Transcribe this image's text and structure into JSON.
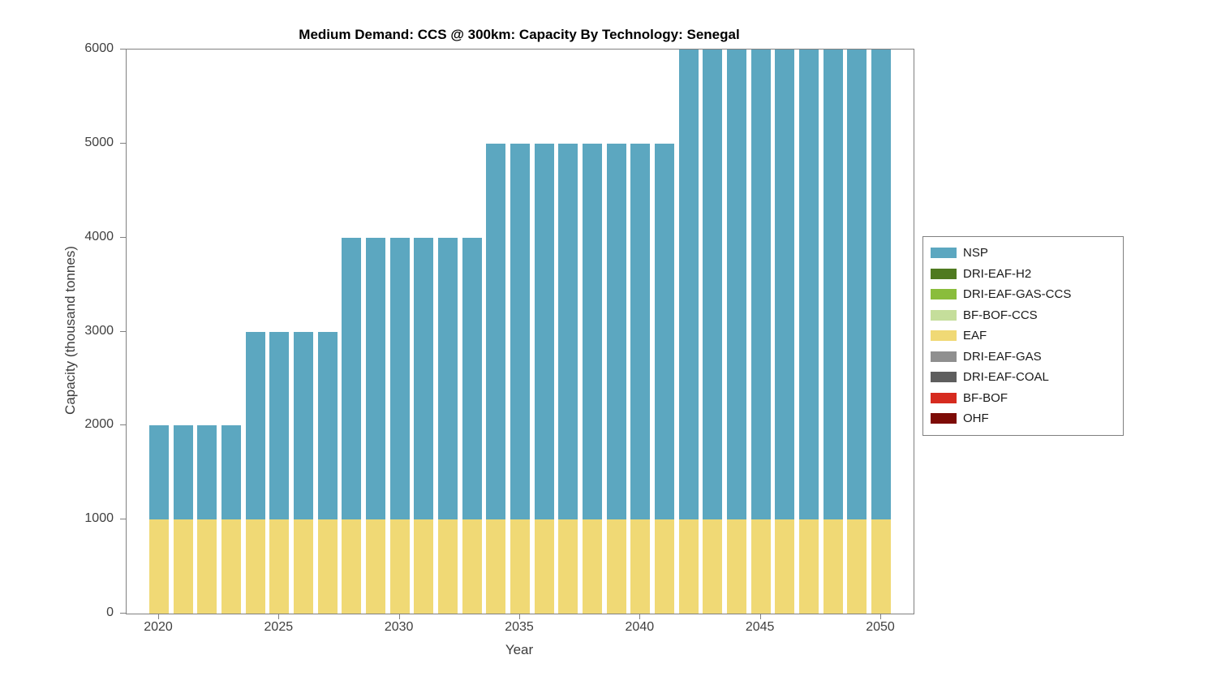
{
  "figure": {
    "title": "Medium Demand: CCS @ 300km: Capacity By Technology: Senegal",
    "xlabel": "Year",
    "ylabel": "Capacity (thousand tonnes)"
  },
  "chart_data": {
    "type": "bar",
    "stacked": true,
    "title": "Medium Demand: CCS @ 300km: Capacity By Technology: Senegal",
    "xlabel": "Year",
    "ylabel": "Capacity (thousand tonnes)",
    "grid": false,
    "ylim": [
      0,
      6000
    ],
    "yticks": [
      0,
      1000,
      2000,
      3000,
      4000,
      5000,
      6000
    ],
    "xticks": [
      2020,
      2025,
      2030,
      2035,
      2040,
      2045,
      2050
    ],
    "x": [
      2020,
      2021,
      2022,
      2023,
      2024,
      2025,
      2026,
      2027,
      2028,
      2029,
      2030,
      2031,
      2032,
      2033,
      2034,
      2035,
      2036,
      2037,
      2038,
      2039,
      2040,
      2041,
      2042,
      2043,
      2044,
      2045,
      2046,
      2047,
      2048,
      2049,
      2050
    ],
    "series": [
      {
        "name": "EAF",
        "color": "#F0D975",
        "values": [
          1000,
          1000,
          1000,
          1000,
          1000,
          1000,
          1000,
          1000,
          1000,
          1000,
          1000,
          1000,
          1000,
          1000,
          1000,
          1000,
          1000,
          1000,
          1000,
          1000,
          1000,
          1000,
          1000,
          1000,
          1000,
          1000,
          1000,
          1000,
          1000,
          1000,
          1000
        ]
      },
      {
        "name": "NSP",
        "color": "#5CA7C0",
        "values": [
          1000,
          1000,
          1000,
          1000,
          2000,
          2000,
          2000,
          2000,
          3000,
          3000,
          3000,
          3000,
          3000,
          3000,
          4000,
          4000,
          4000,
          4000,
          4000,
          4000,
          4000,
          4000,
          5000,
          5000,
          5000,
          5000,
          5000,
          5000,
          5000,
          5000,
          5000
        ]
      }
    ],
    "totals": [
      2000,
      2000,
      2000,
      2000,
      3000,
      3000,
      3000,
      3000,
      4000,
      4000,
      4000,
      4000,
      4000,
      4000,
      5000,
      5000,
      5000,
      5000,
      5000,
      5000,
      5000,
      5000,
      6000,
      6000,
      6000,
      6000,
      6000,
      6000,
      6000,
      6000,
      6000
    ],
    "legend": {
      "position": "right-outside",
      "entries": [
        {
          "label": "NSP",
          "color": "#5CA7C0"
        },
        {
          "label": "DRI-EAF-H2",
          "color": "#4F7A20"
        },
        {
          "label": "DRI-EAF-GAS-CCS",
          "color": "#8ABD3C"
        },
        {
          "label": "BF-BOF-CCS",
          "color": "#C5DE9B"
        },
        {
          "label": "EAF",
          "color": "#F0D975"
        },
        {
          "label": "DRI-EAF-GAS",
          "color": "#8F8F8F"
        },
        {
          "label": "DRI-EAF-COAL",
          "color": "#5E5E5E"
        },
        {
          "label": "BF-BOF",
          "color": "#D62B1F"
        },
        {
          "label": "OHF",
          "color": "#7D0B06"
        }
      ]
    }
  }
}
